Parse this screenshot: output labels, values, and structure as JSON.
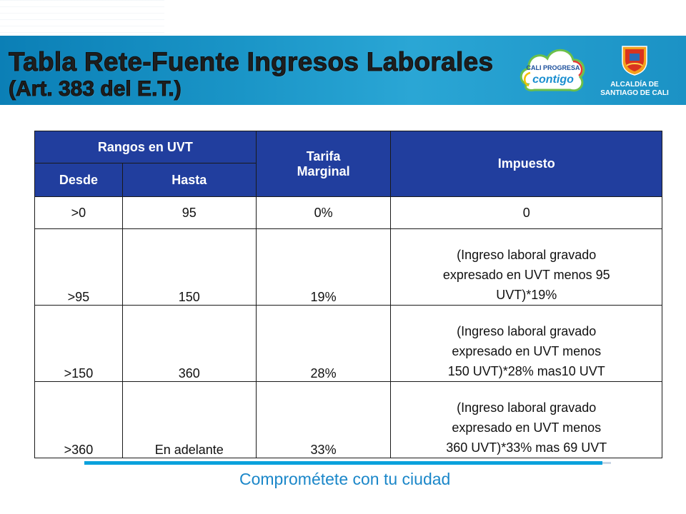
{
  "banner": {
    "title_line1": "Tabla Rete-Fuente Ingresos Laborales",
    "title_line2": "(Art. 383 del E.T.)"
  },
  "logos": {
    "cali_progresa_line1": "CALI PROGRESA",
    "cali_progresa_line2": "contigo",
    "alcaldia_line1": "ALCALDÍA DE",
    "alcaldia_line2": "SANTIAGO DE CALI"
  },
  "table": {
    "header_rangos": "Rangos en UVT",
    "header_desde": "Desde",
    "header_hasta": "Hasta",
    "header_tarifa_line1": "Tarifa",
    "header_tarifa_line2": "Marginal",
    "header_impuesto": "Impuesto",
    "rows": [
      {
        "desde": ">0",
        "hasta": "95",
        "tarifa": "0%",
        "impuesto_lines": [
          "0"
        ]
      },
      {
        "desde": ">95",
        "hasta": "150",
        "tarifa": "19%",
        "impuesto_lines": [
          "(Ingreso laboral gravado",
          "expresado en UVT menos 95",
          "UVT)*19%"
        ]
      },
      {
        "desde": ">150",
        "hasta": "360",
        "tarifa": "28%",
        "impuesto_lines": [
          "(Ingreso laboral gravado",
          "expresado en UVT menos",
          "150 UVT)*28% mas10 UVT"
        ]
      },
      {
        "desde": ">360",
        "hasta": "En adelante",
        "tarifa": "33%",
        "impuesto_lines": [
          "(Ingreso laboral gravado",
          "expresado en UVT menos",
          "360 UVT)*33% mas 69 UVT"
        ]
      }
    ]
  },
  "footer": {
    "slogan": "Comprométete con tu ciudad"
  },
  "colors": {
    "banner_blue": "#1a95c7",
    "table_header_blue": "#213e9e",
    "footer_accent": "#0aa1dc"
  }
}
